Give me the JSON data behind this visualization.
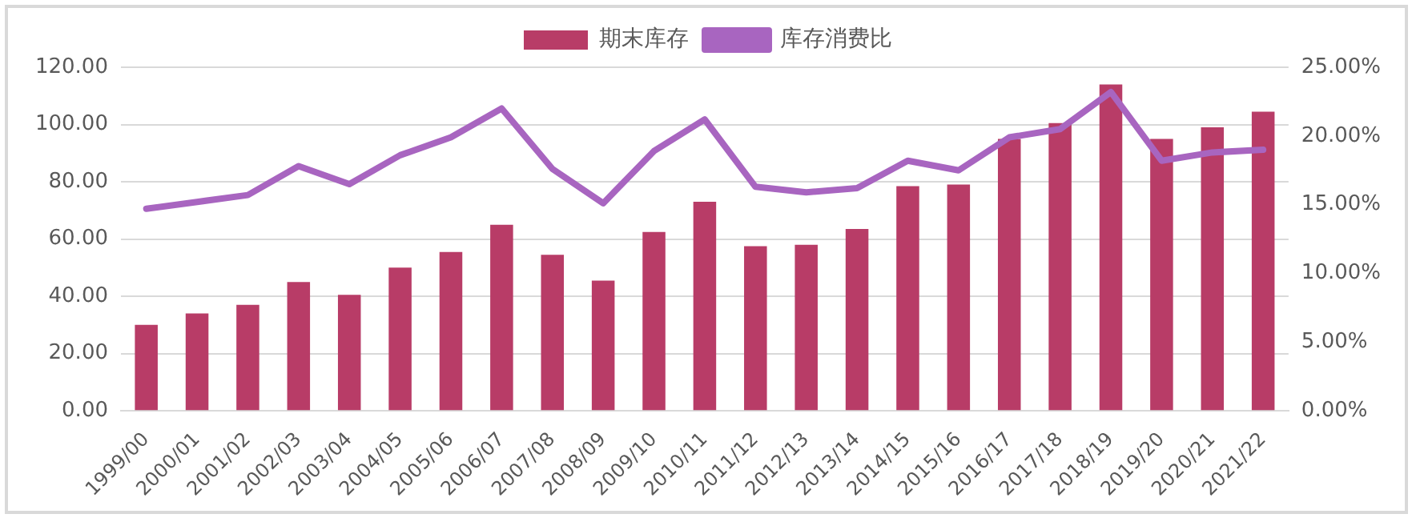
{
  "chart_data": {
    "type": "bar",
    "categories": [
      "1999/00",
      "2000/01",
      "2001/02",
      "2002/03",
      "2003/04",
      "2004/05",
      "2005/06",
      "2006/07",
      "2007/08",
      "2008/09",
      "2009/10",
      "2010/11",
      "2011/12",
      "2012/13",
      "2013/14",
      "2014/15",
      "2015/16",
      "2016/17",
      "2017/18",
      "2018/19",
      "2019/20",
      "2020/21",
      "2021/22"
    ],
    "series": [
      {
        "name": "期末库存",
        "color": "#b83c67",
        "values": [
          30,
          34,
          37,
          45,
          40.5,
          50,
          55.5,
          65,
          54.5,
          45.5,
          62.5,
          73,
          57.5,
          58,
          63.5,
          78.5,
          79,
          95,
          100.5,
          114,
          95,
          99,
          104.5
        ]
      },
      {
        "name": "库存消费比",
        "type": "line",
        "axis": "y2",
        "color": "#a865c0",
        "values": [
          14.7,
          15.2,
          15.7,
          17.8,
          16.5,
          18.6,
          19.9,
          22.0,
          17.6,
          15.1,
          18.9,
          21.2,
          16.3,
          15.9,
          16.2,
          18.2,
          17.5,
          19.9,
          20.5,
          23.2,
          18.2,
          18.8,
          19.0
        ]
      }
    ],
    "ylim": [
      0,
      120
    ],
    "yticks": [
      {
        "value": 0,
        "label": "0.00"
      },
      {
        "value": 20,
        "label": "20.00"
      },
      {
        "value": 40,
        "label": "40.00"
      },
      {
        "value": 60,
        "label": "60.00"
      },
      {
        "value": 80,
        "label": "80.00"
      },
      {
        "value": 100,
        "label": "100.00"
      },
      {
        "value": 120,
        "label": "120.00"
      }
    ],
    "y2lim": [
      0,
      25
    ],
    "y2ticks": [
      {
        "value": 0,
        "label": "0.00%"
      },
      {
        "value": 5,
        "label": "5.00%"
      },
      {
        "value": 10,
        "label": "10.00%"
      },
      {
        "value": 15,
        "label": "15.00%"
      },
      {
        "value": 20,
        "label": "20.00%"
      },
      {
        "value": 25,
        "label": "25.00%"
      }
    ],
    "grid": "y",
    "legend": "top",
    "marker": "none",
    "line_style": "solid"
  }
}
